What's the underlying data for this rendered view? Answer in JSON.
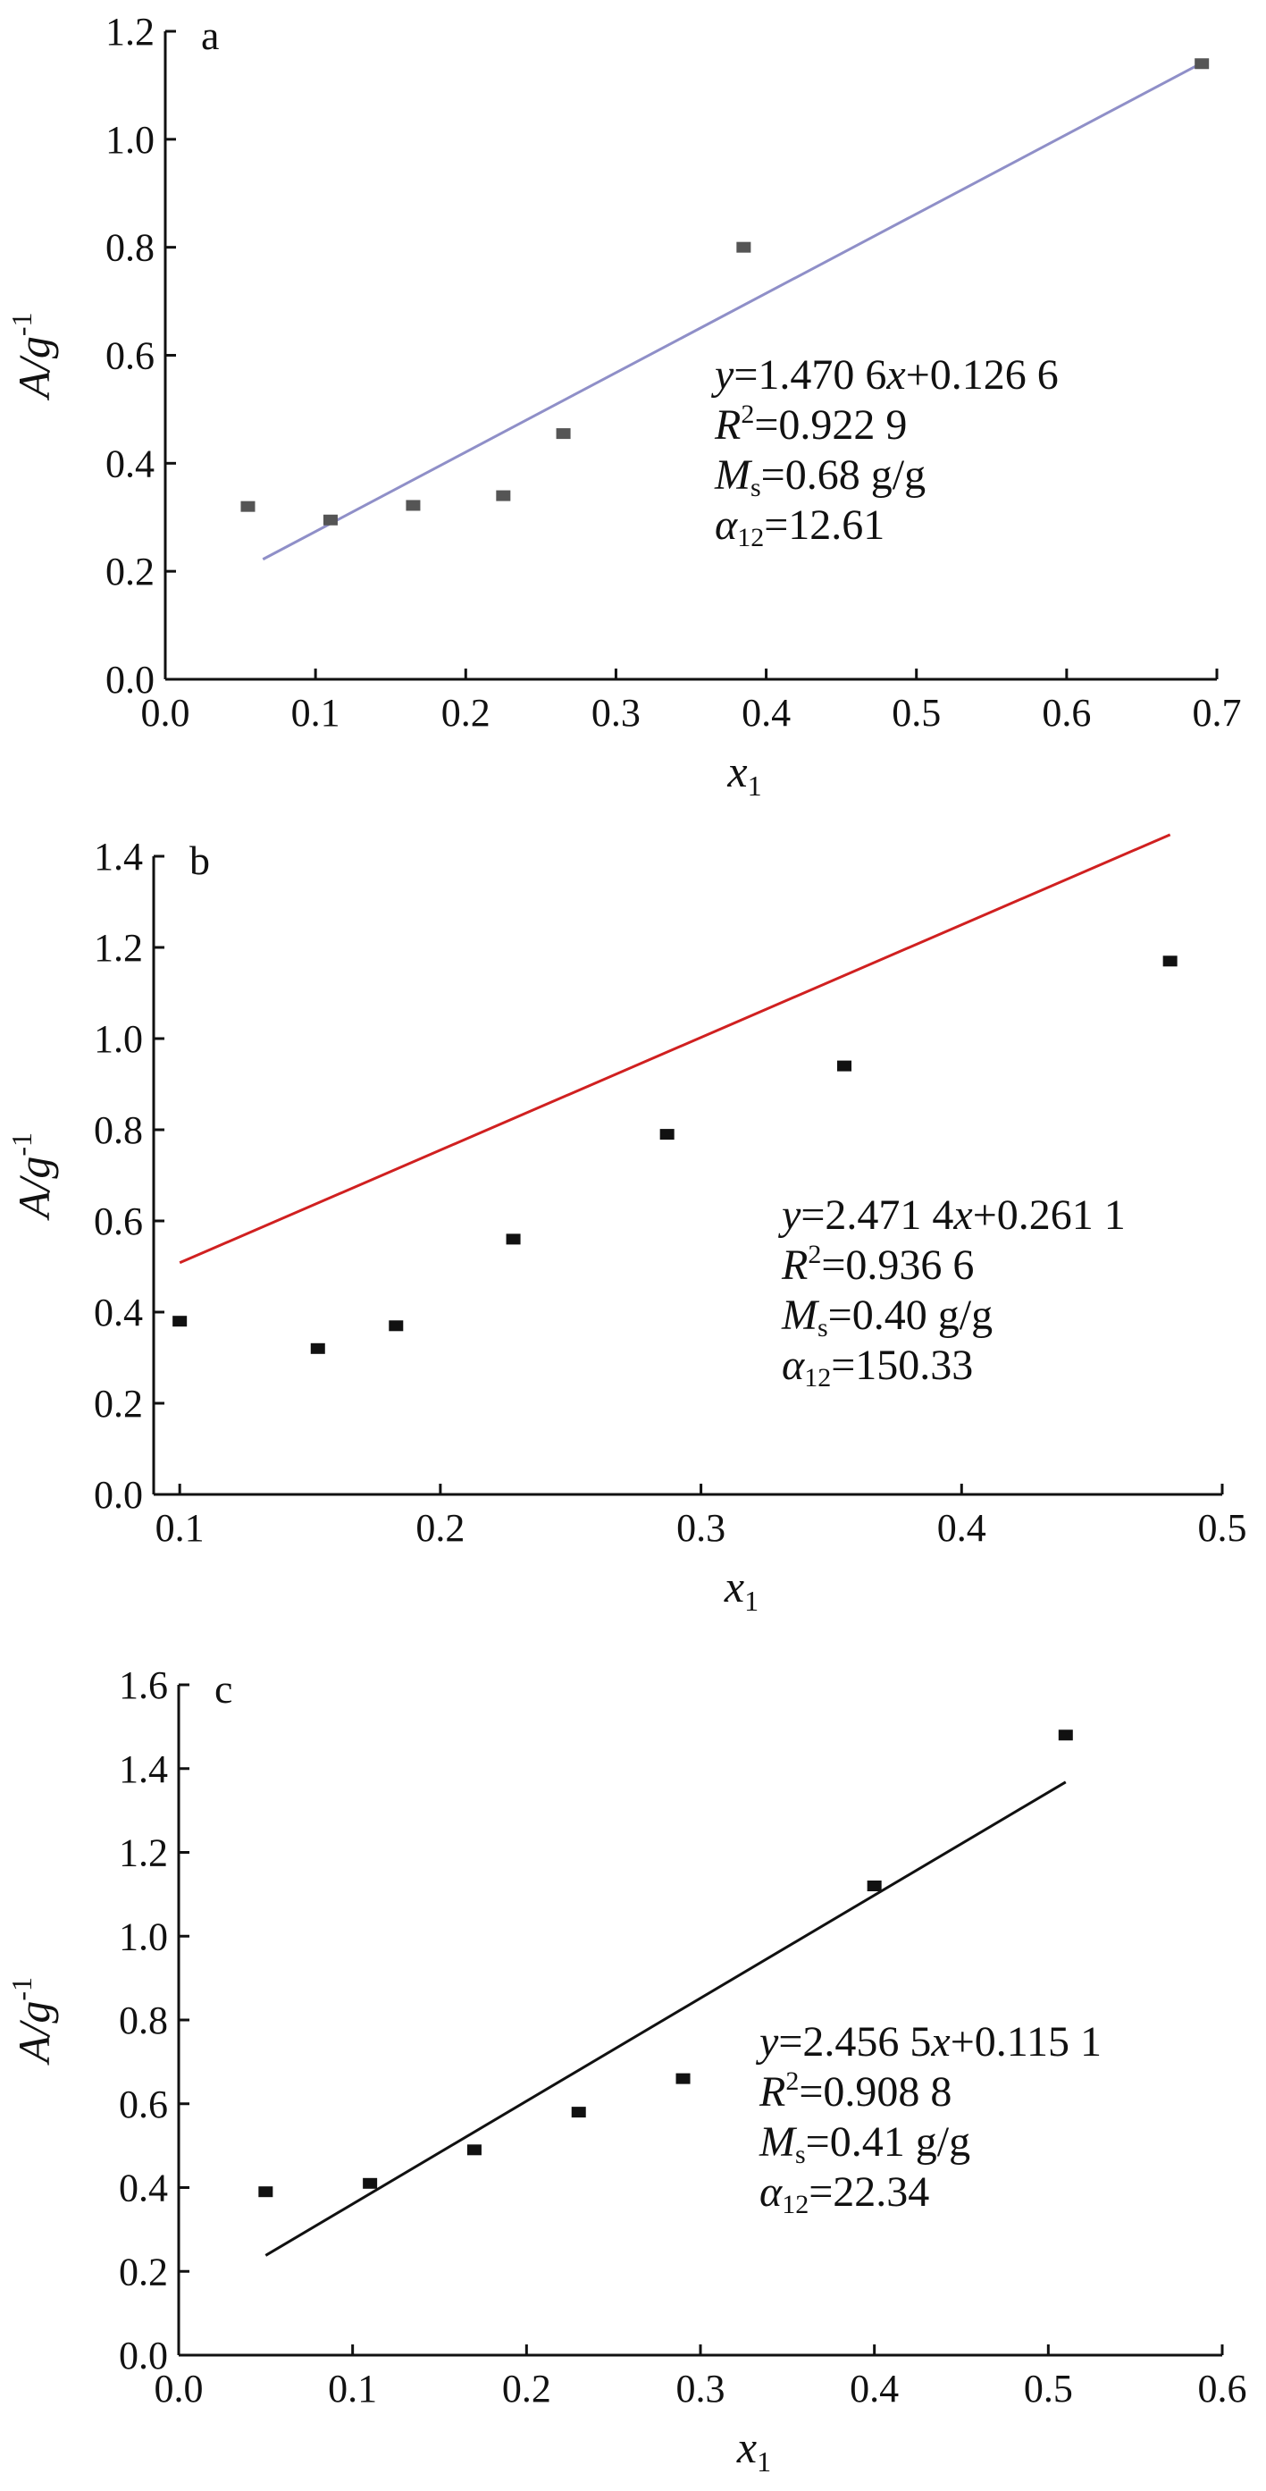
{
  "chart_data": [
    {
      "type": "scatter",
      "panel_label": "a",
      "xlabel": {
        "main": "x",
        "sub": "1"
      },
      "ylabel": {
        "main": "A/g",
        "sup": "-1"
      },
      "xlim": [
        0.0,
        0.7
      ],
      "ylim": [
        0.0,
        1.2
      ],
      "xticks": [
        "0.0",
        "0.1",
        "0.2",
        "0.3",
        "0.4",
        "0.5",
        "0.6",
        "0.7"
      ],
      "yticks": [
        "0.0",
        "0.2",
        "0.4",
        "0.6",
        "0.8",
        "1.0",
        "1.2"
      ],
      "grid": false,
      "points": {
        "x": [
          0.055,
          0.11,
          0.165,
          0.225,
          0.265,
          0.385,
          0.69
        ],
        "y": [
          0.32,
          0.295,
          0.322,
          0.34,
          0.455,
          0.8,
          1.14
        ]
      },
      "marker_color": "#555555",
      "fit_line": {
        "x": [
          0.065,
          0.69
        ],
        "slope": 1.4706,
        "intercept": 0.1266,
        "color": "#8f8fc8"
      },
      "annotation": {
        "equation": {
          "y": "y",
          "eq": "=1.470 6",
          "x": "x",
          "rest": "+0.126 6"
        },
        "r2": {
          "sym": "R",
          "sup": "2",
          "val": "=0.922 9"
        },
        "ms": {
          "sym": "M",
          "sub": "s",
          "val": "=0.68 g/g"
        },
        "alpha": {
          "sym": "α",
          "sub": "12",
          "val": "=12.61"
        }
      }
    },
    {
      "type": "scatter",
      "panel_label": "b",
      "xlabel": {
        "main": "x",
        "sub": "1"
      },
      "ylabel": {
        "main": "A/g",
        "sup": "-1"
      },
      "xlim": [
        0.09,
        0.5
      ],
      "ylim": [
        0.0,
        1.4
      ],
      "xticks": [
        "0.1",
        "0.2",
        "0.3",
        "0.4",
        "0.5"
      ],
      "yticks": [
        "0.0",
        "0.2",
        "0.4",
        "0.6",
        "0.8",
        "1.0",
        "1.2",
        "1.4"
      ],
      "grid": false,
      "points": {
        "x": [
          0.1,
          0.153,
          0.183,
          0.228,
          0.287,
          0.355,
          0.48
        ],
        "y": [
          0.38,
          0.32,
          0.37,
          0.56,
          0.79,
          0.94,
          1.17
        ]
      },
      "marker_color": "#111111",
      "fit_line": {
        "x": [
          0.1,
          0.48
        ],
        "slope": 2.4714,
        "intercept": 0.2611,
        "color": "#d02020"
      },
      "annotation": {
        "equation": {
          "y": "y",
          "eq": "=2.471 4",
          "x": "x",
          "rest": "+0.261 1"
        },
        "r2": {
          "sym": "R",
          "sup": "2",
          "val": "=0.936 6"
        },
        "ms": {
          "sym": "M",
          "sub": "s",
          "val": "=0.40 g/g"
        },
        "alpha": {
          "sym": "α",
          "sub": "12",
          "val": "=150.33"
        }
      }
    },
    {
      "type": "scatter",
      "panel_label": "c",
      "xlabel": {
        "main": "x",
        "sub": "1"
      },
      "ylabel": {
        "main": "A/g",
        "sup": "-1"
      },
      "xlim": [
        0.0,
        0.6
      ],
      "ylim": [
        0.0,
        1.6
      ],
      "xticks": [
        "0.0",
        "0.1",
        "0.2",
        "0.3",
        "0.4",
        "0.5",
        "0.6"
      ],
      "yticks": [
        "0.0",
        "0.2",
        "0.4",
        "0.6",
        "0.8",
        "1.0",
        "1.2",
        "1.4",
        "1.6"
      ],
      "grid": false,
      "points": {
        "x": [
          0.05,
          0.11,
          0.17,
          0.23,
          0.29,
          0.4,
          0.51
        ],
        "y": [
          0.39,
          0.41,
          0.49,
          0.58,
          0.66,
          1.12,
          1.48
        ]
      },
      "marker_color": "#111111",
      "fit_line": {
        "x": [
          0.05,
          0.51
        ],
        "slope": 2.4565,
        "intercept": 0.1151,
        "color": "#111111"
      },
      "annotation": {
        "equation": {
          "y": "y",
          "eq": "=2.456 5",
          "x": "x",
          "rest": "+0.115 1"
        },
        "r2": {
          "sym": "R",
          "sup": "2",
          "val": "=0.908 8"
        },
        "ms": {
          "sym": "M",
          "sub": "s",
          "val": "=0.41 g/g"
        },
        "alpha": {
          "sym": "α",
          "sub": "12",
          "val": "=22.34"
        }
      }
    }
  ]
}
